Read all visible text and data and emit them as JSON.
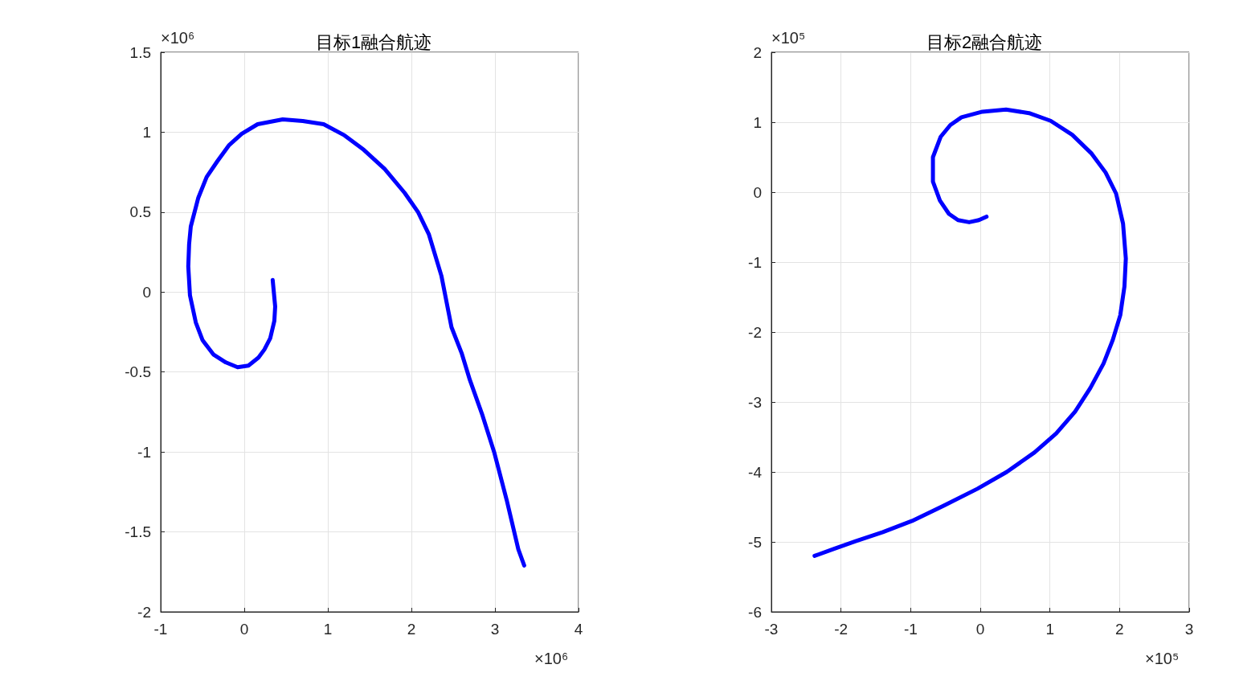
{
  "chart_data": [
    {
      "type": "line",
      "title": "目标1融合航迹",
      "annotations": [
        "×10⁶",
        "×10⁶"
      ],
      "xlim": [
        -1,
        4
      ],
      "ylim": [
        -2,
        1.5
      ],
      "xticks": [
        -1,
        0,
        1,
        2,
        3,
        4
      ],
      "yticks": [
        -2,
        -1.5,
        -1,
        -0.5,
        0,
        0.5,
        1,
        1.5
      ],
      "grid": true,
      "series": [
        {
          "color": "#0000ff",
          "x": [
            0.34,
            0.37,
            0.36,
            0.31,
            0.24,
            0.17,
            0.05,
            -0.08,
            -0.22,
            -0.37,
            -0.5,
            -0.58,
            -0.65,
            -0.67,
            -0.66,
            -0.64,
            -0.55,
            -0.45,
            -0.32,
            -0.18,
            -0.03,
            0.16,
            0.36,
            0.46,
            0.7,
            0.95,
            1.2,
            1.43,
            1.68,
            1.92,
            2.08,
            2.21,
            2.36,
            2.48,
            2.6,
            2.7,
            2.85,
            2.99,
            3.14,
            3.28,
            3.35
          ],
          "values": [
            0.076,
            -0.09,
            -0.18,
            -0.29,
            -0.36,
            -0.41,
            -0.46,
            -0.47,
            -0.44,
            -0.39,
            -0.3,
            -0.19,
            -0.02,
            0.16,
            0.3,
            0.41,
            0.59,
            0.72,
            0.82,
            0.92,
            0.99,
            1.05,
            1.07,
            1.08,
            1.07,
            1.05,
            0.98,
            0.89,
            0.77,
            0.62,
            0.5,
            0.36,
            0.1,
            -0.22,
            -0.38,
            -0.55,
            -0.77,
            -1.0,
            -1.3,
            -1.61,
            -1.71
          ]
        }
      ]
    },
    {
      "type": "line",
      "title": "目标2融合航迹",
      "annotations": [
        "×10⁵",
        "×10⁵"
      ],
      "xlim": [
        -3,
        3
      ],
      "ylim": [
        -6,
        2
      ],
      "xticks": [
        -3,
        -2,
        -1,
        0,
        1,
        2,
        3
      ],
      "yticks": [
        -6,
        -5,
        -4,
        -3,
        -2,
        -1,
        0,
        1,
        2
      ],
      "grid": true,
      "series": [
        {
          "color": "#0000ff",
          "x": [
            0.09,
            -0.02,
            -0.16,
            -0.32,
            -0.45,
            -0.58,
            -0.68,
            -0.68,
            -0.57,
            -0.43,
            -0.27,
            0.03,
            0.37,
            0.7,
            1.01,
            1.32,
            1.6,
            1.8,
            1.95,
            2.05,
            2.09,
            2.07,
            2.01,
            1.9,
            1.77,
            1.58,
            1.36,
            1.09,
            0.78,
            0.38,
            -0.04,
            -0.52,
            -0.98,
            -1.4,
            -1.79,
            -2.1,
            -2.38
          ],
          "values": [
            -0.35,
            -0.4,
            -0.43,
            -0.4,
            -0.31,
            -0.12,
            0.15,
            0.5,
            0.79,
            0.96,
            1.07,
            1.15,
            1.18,
            1.13,
            1.02,
            0.82,
            0.55,
            0.28,
            -0.02,
            -0.45,
            -0.95,
            -1.35,
            -1.76,
            -2.12,
            -2.45,
            -2.8,
            -3.14,
            -3.45,
            -3.72,
            -4.0,
            -4.24,
            -4.48,
            -4.7,
            -4.86,
            -4.99,
            -5.1,
            -5.2
          ]
        }
      ]
    }
  ]
}
